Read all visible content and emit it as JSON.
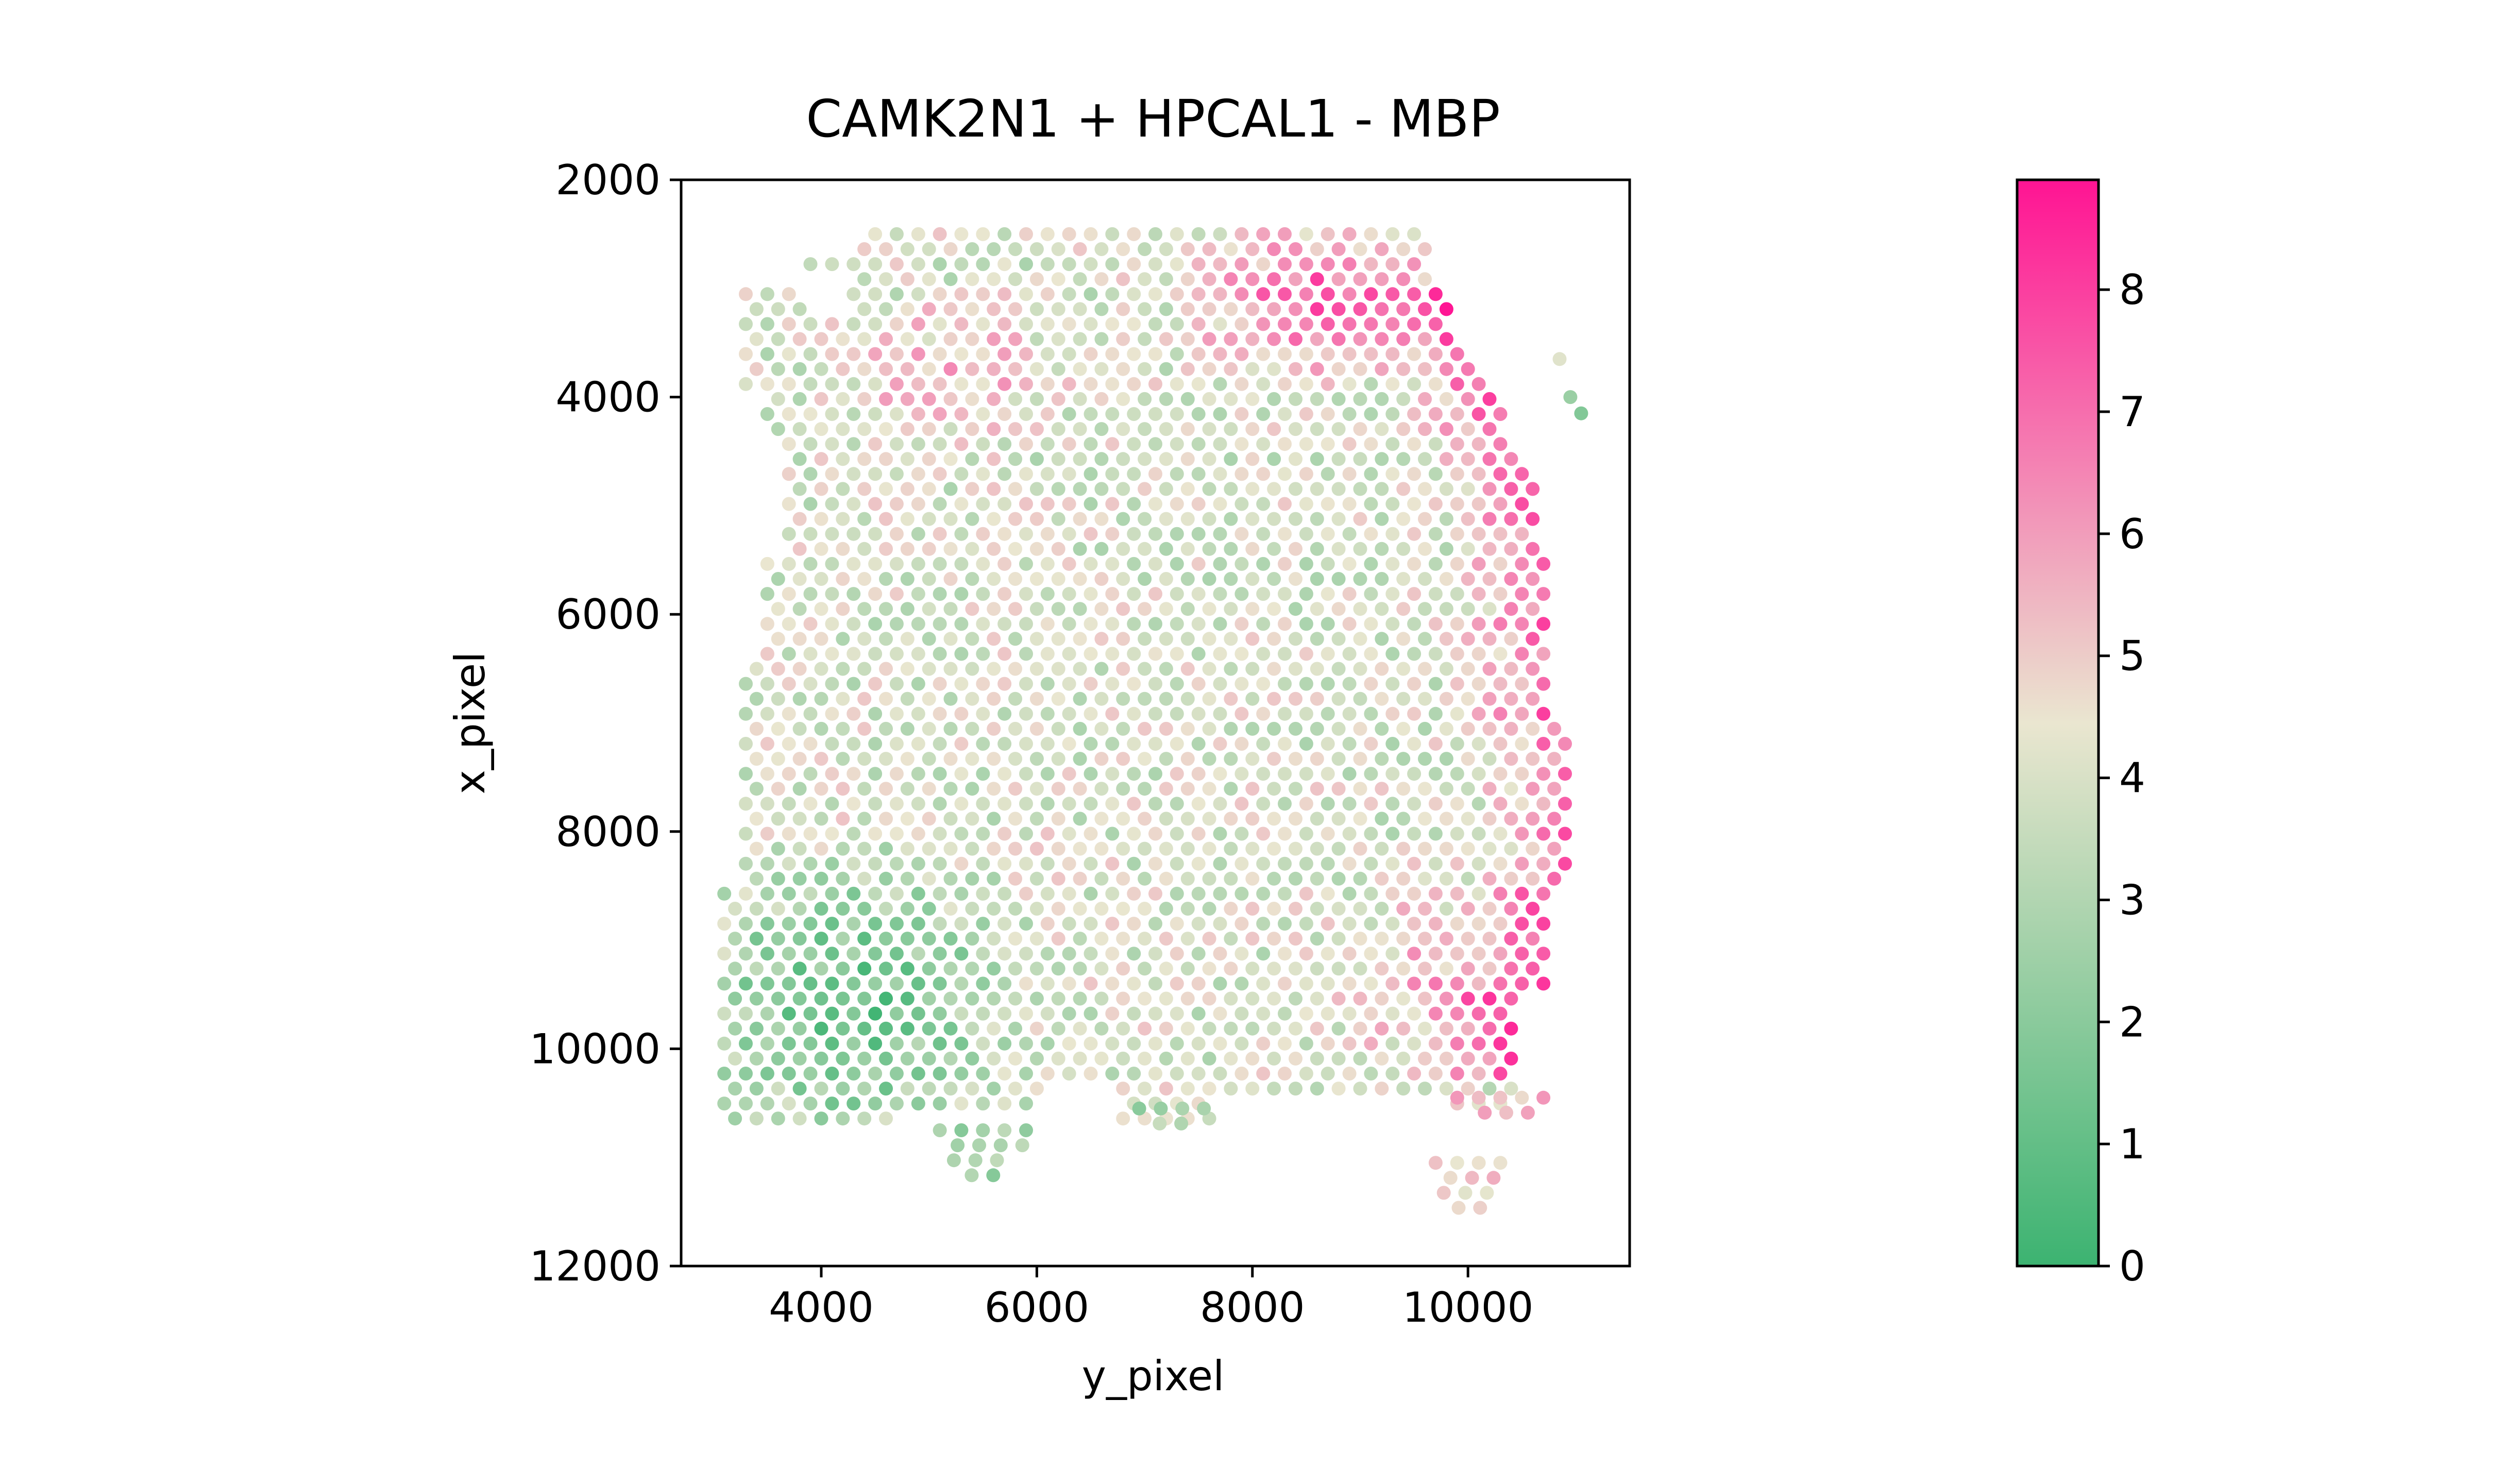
{
  "chart_data": {
    "type": "scatter",
    "title": "CAMK2N1 + HPCAL1 - MBP",
    "xlabel": "y_pixel",
    "ylabel": "x_pixel",
    "xlim": [
      2700,
      11500
    ],
    "ylim": [
      12000,
      2000
    ],
    "y_inverted": true,
    "xticks": [
      4000,
      6000,
      8000,
      10000
    ],
    "xtick_labels": [
      "4000",
      "6000",
      "8000",
      "10000"
    ],
    "yticks": [
      2000,
      4000,
      6000,
      8000,
      10000,
      12000
    ],
    "ytick_labels": [
      "2000",
      "4000",
      "6000",
      "8000",
      "10000",
      "12000"
    ],
    "grid": false,
    "legend": "none",
    "colorbar": {
      "vmin": 0,
      "vmax": 8.9,
      "ticks": [
        0,
        1,
        2,
        3,
        4,
        5,
        6,
        7,
        8
      ],
      "tick_labels": [
        "0",
        "1",
        "2",
        "3",
        "4",
        "5",
        "6",
        "7",
        "8"
      ],
      "colormap": [
        "#3cb371",
        "#eae6d0",
        "#ff1493"
      ]
    },
    "spot_spacing": {
      "dx": 200,
      "dy": 138
    },
    "point_clusters": [
      {
        "region": "upper-right cortex band",
        "center": [
          9600,
          4500
        ],
        "value_range": [
          6,
          8.9
        ]
      },
      {
        "region": "right edge band",
        "center": [
          10400,
          7200
        ],
        "value_range": [
          6.5,
          8.5
        ]
      },
      {
        "region": "center",
        "center": [
          7500,
          6500
        ],
        "value_range": [
          3,
          5
        ]
      },
      {
        "region": "lower-left",
        "center": [
          4500,
          9500
        ],
        "value_range": [
          0,
          2
        ]
      },
      {
        "region": "lower-right",
        "center": [
          9800,
          9500
        ],
        "value_range": [
          5.5,
          7.5
        ]
      }
    ]
  }
}
